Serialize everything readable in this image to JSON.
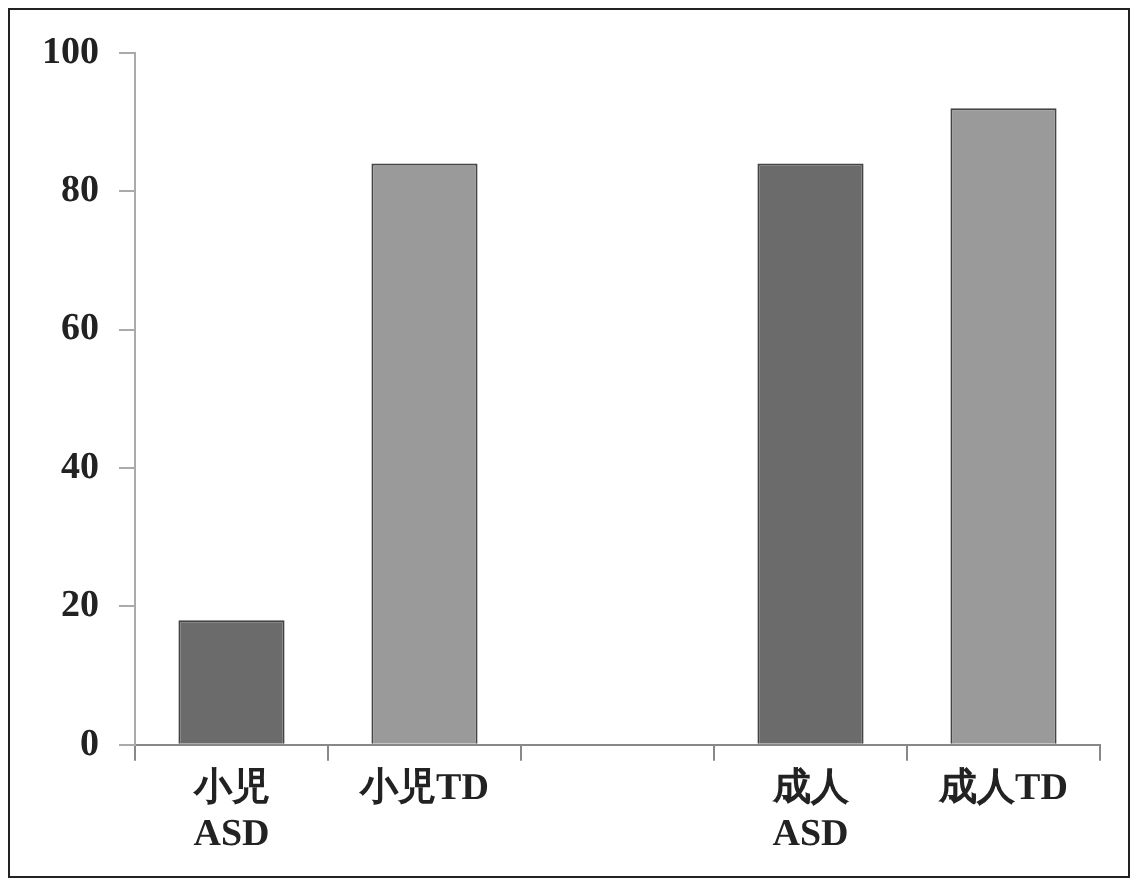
{
  "chart_data": {
    "type": "bar",
    "categories": [
      "小児\nASD",
      "小児TD",
      null,
      "成人\nASD",
      "成人TD"
    ],
    "values": [
      18,
      84,
      null,
      84,
      92
    ],
    "colors": [
      "#6b6b6b",
      "#9a9a9a",
      "#9a9a9a",
      "#6b6b6b",
      "#9a9a9a"
    ],
    "ylim": [
      0,
      100
    ],
    "yticks": [
      0,
      20,
      40,
      60,
      80,
      100
    ],
    "grid": false,
    "legend": false
  }
}
